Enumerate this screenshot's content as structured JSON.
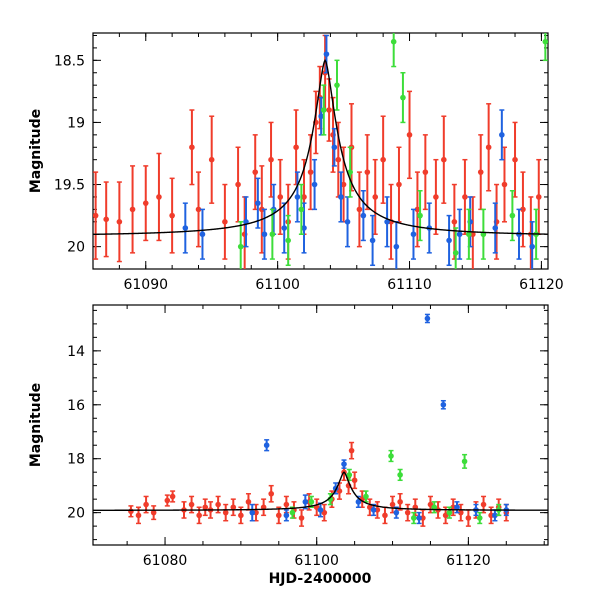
{
  "colors": {
    "red": "#f03c2b",
    "blue": "#1f62e0",
    "green": "#3ddd3a",
    "line": "#000000"
  },
  "chart_data": [
    {
      "type": "scatter",
      "title": "",
      "xlabel": "",
      "ylabel": "Magnitude",
      "xlim": [
        61086,
        61120.5
      ],
      "ylim": [
        20.18,
        18.28
      ],
      "xticks": [
        61090,
        61100,
        61110,
        61120
      ],
      "xtick_labels": [
        "61090",
        "61100",
        "61110",
        "61120"
      ],
      "yticks": [
        18.5,
        19,
        19.5,
        20
      ],
      "ytick_labels": [
        "18.5",
        "19",
        "19.5",
        "20"
      ],
      "model_curve": {
        "peak_x": 61103.6,
        "peak_mag": 18.5,
        "baseline_mag": 19.92
      },
      "series": [
        {
          "name": "red",
          "color": "red",
          "points": [
            [
              61086.2,
              19.75,
              0.35
            ],
            [
              61087,
              19.78,
              0.3
            ],
            [
              61088,
              19.8,
              0.32
            ],
            [
              61089,
              19.7,
              0.35
            ],
            [
              61090,
              19.65,
              0.3
            ],
            [
              61091,
              19.6,
              0.35
            ],
            [
              61092,
              19.75,
              0.3
            ],
            [
              61093.5,
              19.2,
              0.3
            ],
            [
              61094,
              19.7,
              0.3
            ],
            [
              61095,
              19.3,
              0.35
            ],
            [
              61096,
              19.8,
              0.3
            ],
            [
              61097,
              19.5,
              0.3
            ],
            [
              61097.5,
              19.9,
              0.3
            ],
            [
              61098.3,
              19.4,
              0.3
            ],
            [
              61098.8,
              19.7,
              0.35
            ],
            [
              61099.5,
              19.3,
              0.3
            ],
            [
              61100.2,
              19.6,
              0.3
            ],
            [
              61100.8,
              19.8,
              0.3
            ],
            [
              61101.4,
              19.2,
              0.3
            ],
            [
              61102,
              19.6,
              0.3
            ],
            [
              61102.5,
              19.4,
              0.3
            ],
            [
              61102.9,
              19.0,
              0.25
            ],
            [
              61103.2,
              18.8,
              0.25
            ],
            [
              61103.6,
              18.6,
              0.3
            ],
            [
              61103.9,
              18.9,
              0.25
            ],
            [
              61104.2,
              19.1,
              0.3
            ],
            [
              61104.6,
              19.3,
              0.3
            ],
            [
              61105,
              19.5,
              0.3
            ],
            [
              61105.6,
              19.2,
              0.35
            ],
            [
              61106.2,
              19.7,
              0.3
            ],
            [
              61106.8,
              19.4,
              0.3
            ],
            [
              61107.4,
              19.6,
              0.3
            ],
            [
              61108,
              19.3,
              0.35
            ],
            [
              61108.6,
              19.8,
              0.3
            ],
            [
              61109.2,
              19.5,
              0.3
            ],
            [
              61110,
              19.1,
              0.35
            ],
            [
              61110.6,
              19.7,
              0.3
            ],
            [
              61111.2,
              19.4,
              0.3
            ],
            [
              61112,
              19.6,
              0.3
            ],
            [
              61112.6,
              19.3,
              0.35
            ],
            [
              61113.4,
              19.8,
              0.3
            ],
            [
              61114.2,
              19.6,
              0.3
            ],
            [
              61114.8,
              19.9,
              0.3
            ],
            [
              61115.4,
              19.4,
              0.3
            ],
            [
              61116,
              19.2,
              0.35
            ],
            [
              61116.6,
              19.8,
              0.3
            ],
            [
              61117.2,
              19.5,
              0.3
            ],
            [
              61118,
              19.3,
              0.3
            ],
            [
              61118.6,
              19.7,
              0.3
            ],
            [
              61119.2,
              19.9,
              0.3
            ],
            [
              61119.8,
              19.6,
              0.3
            ]
          ]
        },
        {
          "name": "blue",
          "color": "blue",
          "points": [
            [
              61093,
              19.85,
              0.2
            ],
            [
              61094.3,
              19.9,
              0.2
            ],
            [
              61097.6,
              19.8,
              0.2
            ],
            [
              61098.5,
              19.65,
              0.2
            ],
            [
              61099,
              19.9,
              0.2
            ],
            [
              61099.7,
              19.7,
              0.2
            ],
            [
              61100.5,
              19.85,
              0.2
            ],
            [
              61101.5,
              19.6,
              0.2
            ],
            [
              61102,
              19.85,
              0.2
            ],
            [
              61102.8,
              19.5,
              0.2
            ],
            [
              61103.3,
              18.95,
              0.15
            ],
            [
              61103.7,
              18.45,
              0.15
            ],
            [
              61104.3,
              19.2,
              0.15
            ],
            [
              61104.8,
              19.6,
              0.2
            ],
            [
              61105.3,
              19.8,
              0.2
            ],
            [
              61106.5,
              19.75,
              0.2
            ],
            [
              61107.2,
              19.95,
              0.2
            ],
            [
              61108.3,
              19.8,
              0.2
            ],
            [
              61109,
              20.0,
              0.2
            ],
            [
              61110.3,
              19.9,
              0.2
            ],
            [
              61111.5,
              19.85,
              0.2
            ],
            [
              61113,
              19.95,
              0.2
            ],
            [
              61113.8,
              19.9,
              0.2
            ],
            [
              61114.6,
              19.8,
              0.2
            ],
            [
              61116.5,
              19.85,
              0.2
            ],
            [
              61117,
              19.1,
              0.2
            ],
            [
              61118.3,
              19.9,
              0.2
            ],
            [
              61119.3,
              20.0,
              0.2
            ]
          ]
        },
        {
          "name": "green",
          "color": "green",
          "points": [
            [
              61097.2,
              20.0,
              0.2
            ],
            [
              61099.6,
              19.9,
              0.2
            ],
            [
              61100.8,
              19.95,
              0.2
            ],
            [
              61101.8,
              19.7,
              0.2
            ],
            [
              61103.5,
              18.9,
              0.2
            ],
            [
              61104.5,
              18.7,
              0.2
            ],
            [
              61105.5,
              19.4,
              0.2
            ],
            [
              61108.8,
              18.35,
              0.2
            ],
            [
              61109.5,
              18.8,
              0.2
            ],
            [
              61110.8,
              19.75,
              0.2
            ],
            [
              61113.5,
              20.05,
              0.2
            ],
            [
              61114.5,
              19.9,
              0.2
            ],
            [
              61115.6,
              19.9,
              0.2
            ],
            [
              61117.8,
              19.75,
              0.2
            ],
            [
              61119.6,
              19.9,
              0.2
            ],
            [
              61120.3,
              18.35,
              0.15
            ]
          ]
        }
      ]
    },
    {
      "type": "scatter",
      "title": "",
      "xlabel": "HJD-2400000",
      "ylabel": "Magnitude",
      "xlim": [
        61070.5,
        61130.5
      ],
      "ylim": [
        21.2,
        12.3
      ],
      "xticks": [
        61080,
        61100,
        61120
      ],
      "xtick_labels": [
        "61080",
        "61100",
        "61120"
      ],
      "yticks": [
        14,
        16,
        18,
        20
      ],
      "ytick_labels": [
        "14",
        "16",
        "18",
        "20"
      ],
      "model_curve": {
        "peak_x": 61103.6,
        "peak_mag": 18.5,
        "baseline_mag": 19.92
      },
      "series": [
        {
          "name": "red",
          "color": "red",
          "points": [
            [
              61075.5,
              19.95,
              0.2
            ],
            [
              61076.5,
              20.1,
              0.3
            ],
            [
              61077.5,
              19.7,
              0.3
            ],
            [
              61078.5,
              20.0,
              0.25
            ],
            [
              61080.3,
              19.55,
              0.2
            ],
            [
              61081,
              19.4,
              0.2
            ],
            [
              61082.5,
              19.9,
              0.3
            ],
            [
              61083.5,
              19.7,
              0.3
            ],
            [
              61084.5,
              20.1,
              0.3
            ],
            [
              61085.3,
              19.8,
              0.3
            ],
            [
              61086,
              19.9,
              0.3
            ],
            [
              61087,
              19.7,
              0.3
            ],
            [
              61088,
              20.0,
              0.3
            ],
            [
              61089,
              19.8,
              0.3
            ],
            [
              61090,
              20.1,
              0.3
            ],
            [
              61091,
              19.6,
              0.3
            ],
            [
              61092,
              20.0,
              0.3
            ],
            [
              61093,
              19.8,
              0.3
            ],
            [
              61094,
              19.3,
              0.3
            ],
            [
              61095,
              20.1,
              0.3
            ],
            [
              61096,
              19.7,
              0.3
            ],
            [
              61097,
              19.9,
              0.3
            ],
            [
              61098,
              20.2,
              0.3
            ],
            [
              61099,
              19.6,
              0.3
            ],
            [
              61100,
              19.8,
              0.3
            ],
            [
              61101,
              20.0,
              0.3
            ],
            [
              61102,
              19.5,
              0.3
            ],
            [
              61103,
              19.2,
              0.3
            ],
            [
              61103.6,
              18.5,
              0.3
            ],
            [
              61104.2,
              19.0,
              0.3
            ],
            [
              61104.6,
              17.7,
              0.3
            ],
            [
              61105,
              18.8,
              0.3
            ],
            [
              61106,
              19.5,
              0.3
            ],
            [
              61107,
              19.8,
              0.3
            ],
            [
              61108,
              19.9,
              0.3
            ],
            [
              61109,
              20.1,
              0.3
            ],
            [
              61110,
              19.7,
              0.3
            ],
            [
              61111,
              19.6,
              0.3
            ],
            [
              61112,
              20.0,
              0.3
            ],
            [
              61113,
              19.8,
              0.3
            ],
            [
              61114,
              20.2,
              0.3
            ],
            [
              61115,
              19.7,
              0.3
            ],
            [
              61116,
              19.9,
              0.3
            ],
            [
              61117,
              20.1,
              0.3
            ],
            [
              61118,
              19.8,
              0.3
            ],
            [
              61119,
              20.0,
              0.3
            ],
            [
              61120,
              20.2,
              0.3
            ],
            [
              61121,
              19.9,
              0.3
            ],
            [
              61122,
              19.7,
              0.3
            ],
            [
              61123,
              20.1,
              0.3
            ],
            [
              61124,
              19.8,
              0.3
            ],
            [
              61125,
              20.0,
              0.3
            ]
          ]
        },
        {
          "name": "blue",
          "color": "blue",
          "points": [
            [
              61091.5,
              20.0,
              0.3
            ],
            [
              61093.4,
              17.5,
              0.2
            ],
            [
              61096,
              20.1,
              0.2
            ],
            [
              61098.5,
              19.6,
              0.25
            ],
            [
              61100.5,
              19.9,
              0.25
            ],
            [
              61102.5,
              19.1,
              0.2
            ],
            [
              61103.6,
              18.2,
              0.15
            ],
            [
              61105.5,
              19.6,
              0.2
            ],
            [
              61107.5,
              19.9,
              0.2
            ],
            [
              61110.5,
              20.0,
              0.2
            ],
            [
              61113.5,
              20.2,
              0.2
            ],
            [
              61114.6,
              12.8,
              0.15
            ],
            [
              61116.7,
              16.0,
              0.15
            ],
            [
              61118.5,
              19.8,
              0.2
            ],
            [
              61121,
              19.9,
              0.2
            ],
            [
              61123.5,
              20.1,
              0.2
            ],
            [
              61125,
              19.9,
              0.2
            ]
          ]
        },
        {
          "name": "green",
          "color": "green",
          "points": [
            [
              61096.8,
              20.0,
              0.2
            ],
            [
              61099.3,
              19.6,
              0.2
            ],
            [
              61101.8,
              19.5,
              0.2
            ],
            [
              61104.3,
              18.6,
              0.2
            ],
            [
              61106.5,
              19.4,
              0.2
            ],
            [
              61109.8,
              17.9,
              0.2
            ],
            [
              61111,
              18.6,
              0.2
            ],
            [
              61112.8,
              20.2,
              0.2
            ],
            [
              61115.5,
              19.8,
              0.2
            ],
            [
              61117.5,
              20.0,
              0.2
            ],
            [
              61119.5,
              18.1,
              0.25
            ],
            [
              61121.5,
              20.2,
              0.2
            ],
            [
              61124,
              19.9,
              0.2
            ]
          ]
        }
      ]
    }
  ]
}
